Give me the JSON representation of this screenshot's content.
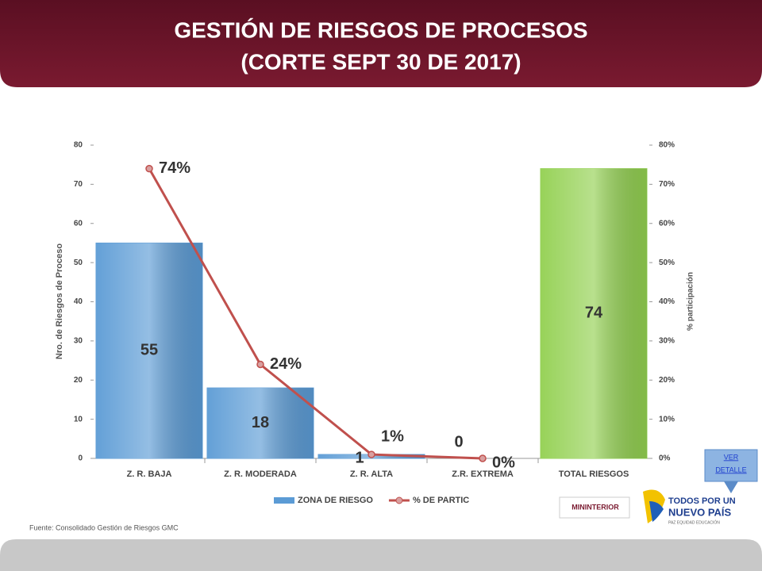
{
  "header": {
    "title_lines": [
      "GESTIÓN DE RIESGOS DE PROCESOS",
      "(CORTE SEPT 30 DE 2017)"
    ]
  },
  "chart_data": {
    "type": "bar",
    "categories": [
      "Z. R. BAJA",
      "Z. R. MODERADA",
      "Z. R. ALTA",
      "Z.R. EXTREMA",
      "TOTAL RIESGOS"
    ],
    "series": [
      {
        "name": "ZONA DE RIESGO",
        "type": "bar",
        "color": "#5b9bd5",
        "colors": [
          "#5b9bd5",
          "#5b9bd5",
          "#5b9bd5",
          "#5b9bd5",
          "#92d050"
        ],
        "values": [
          55,
          18,
          1,
          0,
          74
        ]
      },
      {
        "name": "% DE PARTIC",
        "type": "line",
        "axis": "y2",
        "color": "#c0504d",
        "values": [
          74,
          24,
          1,
          0,
          null
        ],
        "value_labels": [
          "74%",
          "24%",
          "1%",
          "0%",
          null
        ]
      }
    ],
    "y_label": "Nro. de Riesgos de Proceso",
    "y2_label": "% participación",
    "ylim": [
      0,
      80
    ],
    "yticks": [
      0,
      10,
      20,
      30,
      40,
      50,
      60,
      70,
      80
    ],
    "y2lim": [
      0,
      80
    ],
    "y2ticks": [
      {
        "value": 0,
        "label": "0%"
      },
      {
        "value": 10,
        "label": "10%"
      },
      {
        "value": 20,
        "label": "20%"
      },
      {
        "value": 30,
        "label": "30%"
      },
      {
        "value": 40,
        "label": "40%"
      },
      {
        "value": 50,
        "label": "50%"
      },
      {
        "value": 60,
        "label": "60%"
      },
      {
        "value": 70,
        "label": "70%"
      },
      {
        "value": 80,
        "label": "80%"
      }
    ],
    "legend": "bottom"
  },
  "footer": {
    "source": "Fuente: Consolidado Gestión de Riesgos GMC",
    "button": [
      "VER",
      "DETALLE"
    ],
    "logo_left": "MININTERIOR",
    "logo_right": [
      "TODOS POR UN",
      "NUEVO PAÍS"
    ],
    "logo_tagline": "PAZ  EQUIDAD  EDUCACIÓN"
  }
}
